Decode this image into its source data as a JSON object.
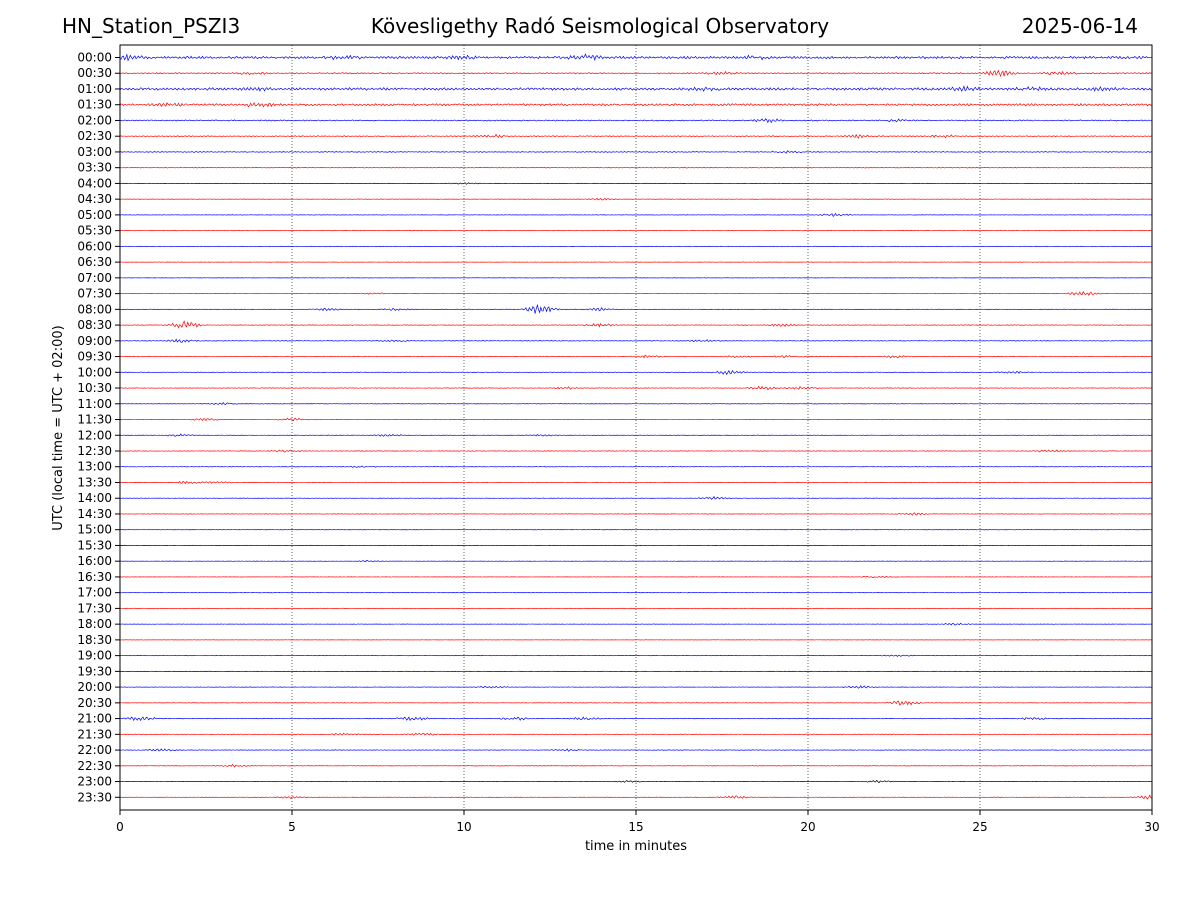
{
  "header": {
    "station": "HN_Station_PSZI3",
    "observatory": "Kövesligethy Radó Seismological Observatory",
    "date": "2025-06-14"
  },
  "chart_data": {
    "type": "line",
    "title": "Kövesligethy Radó Seismological Observatory",
    "xlabel": "time in minutes",
    "ylabel": "UTC (local time = UTC + 02:00)",
    "xlim": [
      0,
      30
    ],
    "xticks": [
      0,
      5,
      10,
      15,
      20,
      25,
      30
    ],
    "grid": "vertical dotted at every 5 minutes",
    "colors": [
      "#0000ff",
      "#ff0000",
      "#000000"
    ],
    "rows": [
      {
        "label": "00:00",
        "color": "#0000ff",
        "amp": 2.2,
        "events": [
          [
            0.2,
            2.5
          ],
          [
            6.5,
            1.5
          ],
          [
            10.0,
            1.8
          ],
          [
            13.5,
            2.5
          ],
          [
            18.5,
            1.5
          ]
        ]
      },
      {
        "label": "00:30",
        "color": "#ff0000",
        "amp": 1.2,
        "events": [
          [
            3.8,
            1.0
          ],
          [
            17.5,
            1.0
          ],
          [
            25.6,
            3.0
          ],
          [
            27.3,
            1.8
          ]
        ]
      },
      {
        "label": "01:00",
        "color": "#0000ff",
        "amp": 2.3,
        "events": [
          [
            4.0,
            1.2
          ],
          [
            17.0,
            1.4
          ],
          [
            24.5,
            1.6
          ],
          [
            26.5,
            2.0
          ],
          [
            28.5,
            1.0
          ]
        ]
      },
      {
        "label": "01:30",
        "color": "#ff0000",
        "amp": 2.0,
        "events": [
          [
            1.5,
            1.2
          ],
          [
            4.0,
            1.8
          ]
        ]
      },
      {
        "label": "02:00",
        "color": "#0000ff",
        "amp": 1.1,
        "events": [
          [
            18.8,
            1.8
          ],
          [
            22.5,
            1.0
          ]
        ]
      },
      {
        "label": "02:30",
        "color": "#ff0000",
        "amp": 0.9,
        "events": [
          [
            10.8,
            1.5
          ],
          [
            21.5,
            1.5
          ],
          [
            24.0,
            1.3
          ]
        ]
      },
      {
        "label": "03:00",
        "color": "#0000ff",
        "amp": 0.8,
        "events": [
          [
            19.4,
            1.2
          ]
        ]
      },
      {
        "label": "03:30",
        "color": "#ff0000",
        "amp": 0.6,
        "events": []
      },
      {
        "label": "04:00",
        "color": "#000000",
        "amp": 0.3,
        "events": [
          [
            10.0,
            1.0
          ]
        ]
      },
      {
        "label": "04:30",
        "color": "#ff0000",
        "amp": 0.4,
        "events": [
          [
            14.0,
            1.0
          ]
        ]
      },
      {
        "label": "05:00",
        "color": "#0000ff",
        "amp": 0.4,
        "events": [
          [
            20.8,
            1.5
          ]
        ]
      },
      {
        "label": "05:30",
        "color": "#ff0000",
        "amp": 0.3,
        "events": []
      },
      {
        "label": "06:00",
        "color": "#0000ff",
        "amp": 0.3,
        "events": []
      },
      {
        "label": "06:30",
        "color": "#ff0000",
        "amp": 0.3,
        "events": []
      },
      {
        "label": "07:00",
        "color": "#0000ff",
        "amp": 0.3,
        "events": []
      },
      {
        "label": "07:30",
        "color": "#ff0000",
        "amp": 0.3,
        "events": [
          [
            7.5,
            1.0
          ],
          [
            28.0,
            2.5
          ]
        ]
      },
      {
        "label": "08:00",
        "color": "#0000ff",
        "amp": 0.4,
        "events": [
          [
            6.0,
            1.2
          ],
          [
            8.0,
            1.2
          ],
          [
            12.2,
            5.0
          ],
          [
            14.0,
            1.5
          ]
        ]
      },
      {
        "label": "08:30",
        "color": "#ff0000",
        "amp": 0.5,
        "events": [
          [
            1.9,
            4.0
          ],
          [
            13.9,
            2.0
          ],
          [
            19.2,
            1.5
          ]
        ]
      },
      {
        "label": "09:00",
        "color": "#0000ff",
        "amp": 0.6,
        "events": [
          [
            1.8,
            2.0
          ],
          [
            8.0,
            1.0
          ],
          [
            17.0,
            1.0
          ]
        ]
      },
      {
        "label": "09:30",
        "color": "#ff0000",
        "amp": 0.5,
        "events": [
          [
            15.3,
            1.5
          ],
          [
            18.0,
            1.2
          ],
          [
            19.4,
            1.2
          ],
          [
            22.5,
            1.4
          ]
        ]
      },
      {
        "label": "10:00",
        "color": "#0000ff",
        "amp": 0.5,
        "events": [
          [
            17.7,
            2.0
          ],
          [
            26.0,
            1.0
          ]
        ]
      },
      {
        "label": "10:30",
        "color": "#ff0000",
        "amp": 0.5,
        "events": [
          [
            13.0,
            1.4
          ],
          [
            18.7,
            2.0
          ],
          [
            19.8,
            1.4
          ]
        ]
      },
      {
        "label": "11:00",
        "color": "#0000ff",
        "amp": 0.4,
        "events": [
          [
            3.0,
            1.0
          ]
        ]
      },
      {
        "label": "11:30",
        "color": "#ff0000",
        "amp": 0.4,
        "events": [
          [
            2.5,
            1.2
          ],
          [
            5.0,
            1.5
          ]
        ]
      },
      {
        "label": "12:00",
        "color": "#0000ff",
        "amp": 0.4,
        "events": [
          [
            1.7,
            1.2
          ],
          [
            7.8,
            1.2
          ],
          [
            12.3,
            1.2
          ]
        ]
      },
      {
        "label": "12:30",
        "color": "#ff0000",
        "amp": 0.5,
        "events": [
          [
            4.8,
            1.2
          ],
          [
            27.0,
            1.2
          ]
        ]
      },
      {
        "label": "13:00",
        "color": "#0000ff",
        "amp": 0.4,
        "events": [
          [
            7.0,
            1.0
          ]
        ]
      },
      {
        "label": "13:30",
        "color": "#ff0000",
        "amp": 0.4,
        "events": [
          [
            2.0,
            1.5
          ],
          [
            2.8,
            1.2
          ]
        ]
      },
      {
        "label": "14:00",
        "color": "#0000ff",
        "amp": 0.4,
        "events": [
          [
            17.3,
            1.5
          ]
        ]
      },
      {
        "label": "14:30",
        "color": "#ff0000",
        "amp": 0.4,
        "events": [
          [
            23.0,
            1.2
          ]
        ]
      },
      {
        "label": "15:00",
        "color": "#0000ff",
        "amp": 0.3,
        "events": []
      },
      {
        "label": "15:30",
        "color": "#000000",
        "amp": 0.3,
        "events": []
      },
      {
        "label": "16:00",
        "color": "#0000ff",
        "amp": 0.3,
        "events": [
          [
            7.2,
            1.0
          ]
        ]
      },
      {
        "label": "16:30",
        "color": "#ff0000",
        "amp": 0.3,
        "events": [
          [
            22.0,
            1.0
          ]
        ]
      },
      {
        "label": "17:00",
        "color": "#0000ff",
        "amp": 0.3,
        "events": []
      },
      {
        "label": "17:30",
        "color": "#ff0000",
        "amp": 0.3,
        "events": []
      },
      {
        "label": "18:00",
        "color": "#0000ff",
        "amp": 0.3,
        "events": [
          [
            24.3,
            1.2
          ]
        ]
      },
      {
        "label": "18:30",
        "color": "#ff0000",
        "amp": 0.3,
        "events": []
      },
      {
        "label": "19:00",
        "color": "#0000ff",
        "amp": 0.3,
        "events": [
          [
            22.6,
            1.0
          ]
        ]
      },
      {
        "label": "19:30",
        "color": "#000000",
        "amp": 0.3,
        "events": []
      },
      {
        "label": "20:00",
        "color": "#0000ff",
        "amp": 0.4,
        "events": [
          [
            10.8,
            1.2
          ],
          [
            21.5,
            1.2
          ]
        ]
      },
      {
        "label": "20:30",
        "color": "#ff0000",
        "amp": 0.4,
        "events": [
          [
            22.8,
            3.0
          ]
        ]
      },
      {
        "label": "21:00",
        "color": "#0000ff",
        "amp": 0.6,
        "events": [
          [
            0.6,
            2.2
          ],
          [
            8.5,
            2.0
          ],
          [
            11.5,
            1.8
          ],
          [
            13.5,
            1.5
          ],
          [
            26.5,
            1.4
          ]
        ]
      },
      {
        "label": "21:30",
        "color": "#ff0000",
        "amp": 0.5,
        "events": [
          [
            6.5,
            1.2
          ],
          [
            8.8,
            1.5
          ]
        ]
      },
      {
        "label": "22:00",
        "color": "#0000ff",
        "amp": 0.5,
        "events": [
          [
            1.3,
            1.5
          ],
          [
            13.0,
            1.0
          ]
        ]
      },
      {
        "label": "22:30",
        "color": "#ff0000",
        "amp": 0.4,
        "events": [
          [
            3.3,
            1.2
          ]
        ]
      },
      {
        "label": "23:00",
        "color": "#000000",
        "amp": 0.3,
        "events": [
          [
            14.8,
            1.0
          ],
          [
            22.0,
            1.2
          ]
        ]
      },
      {
        "label": "23:30",
        "color": "#ff0000",
        "amp": 0.4,
        "events": [
          [
            5.0,
            1.2
          ],
          [
            17.9,
            1.8
          ],
          [
            29.9,
            2.0
          ]
        ]
      }
    ]
  }
}
